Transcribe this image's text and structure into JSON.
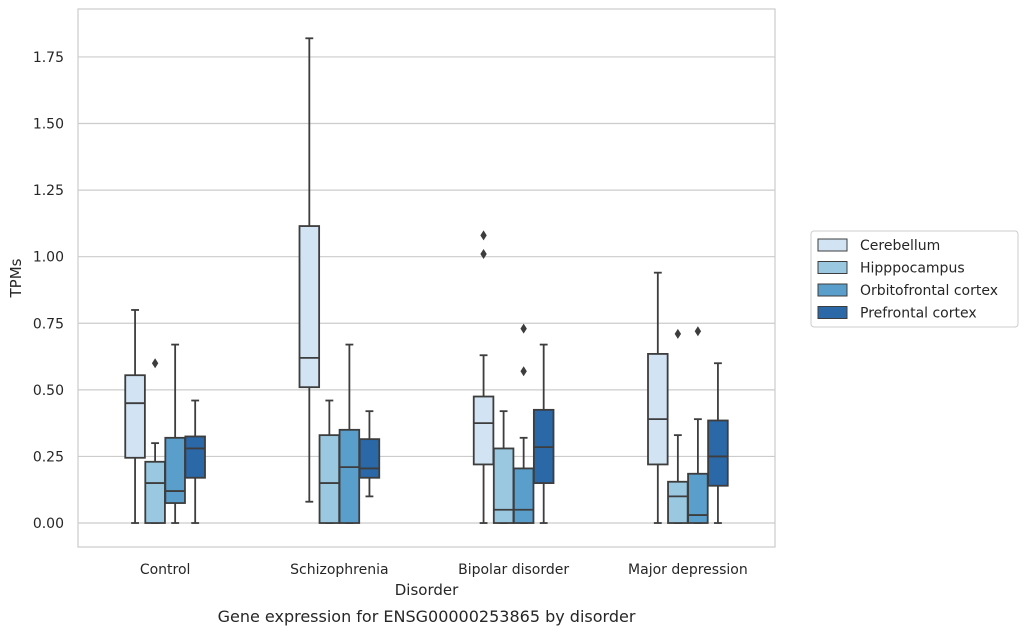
{
  "chart_data": {
    "type": "box",
    "caption": "Gene expression for ENSG00000253865 by disorder",
    "xlabel": "Disorder",
    "ylabel": "TPMs",
    "ylim": [
      -0.09,
      1.93
    ],
    "yticks": [
      "0.00",
      "0.25",
      "0.50",
      "0.75",
      "1.00",
      "1.25",
      "1.50",
      "1.75"
    ],
    "ytick_values": [
      0,
      0.25,
      0.5,
      0.75,
      1.0,
      1.25,
      1.5,
      1.75
    ],
    "categories": [
      "Control",
      "Schizophrenia",
      "Bipolar disorder",
      "Major depression"
    ],
    "grid": "horizontal",
    "legend_position": "right",
    "series": [
      {
        "name": "Cerebellum",
        "color": "#d2e3f3",
        "boxes": [
          {
            "whislo": 0.0,
            "q1": 0.245,
            "med": 0.45,
            "q3": 0.555,
            "whishi": 0.8,
            "fliers": []
          },
          {
            "whislo": 0.08,
            "q1": 0.51,
            "med": 0.62,
            "q3": 1.115,
            "whishi": 1.82,
            "fliers": []
          },
          {
            "whislo": 0.0,
            "q1": 0.22,
            "med": 0.375,
            "q3": 0.475,
            "whishi": 0.63,
            "fliers": [
              1.01,
              1.08
            ]
          },
          {
            "whislo": 0.0,
            "q1": 0.22,
            "med": 0.39,
            "q3": 0.635,
            "whishi": 0.94,
            "fliers": []
          }
        ]
      },
      {
        "name": "Hipppocampus",
        "color": "#9ac8e0",
        "boxes": [
          {
            "whislo": 0.0,
            "q1": 0.0,
            "med": 0.15,
            "q3": 0.23,
            "whishi": 0.3,
            "fliers": [
              0.6
            ]
          },
          {
            "whislo": 0.0,
            "q1": 0.0,
            "med": 0.15,
            "q3": 0.33,
            "whishi": 0.46,
            "fliers": []
          },
          {
            "whislo": 0.0,
            "q1": 0.0,
            "med": 0.05,
            "q3": 0.28,
            "whishi": 0.42,
            "fliers": []
          },
          {
            "whislo": 0.0,
            "q1": 0.0,
            "med": 0.1,
            "q3": 0.155,
            "whishi": 0.33,
            "fliers": [
              0.71
            ]
          }
        ]
      },
      {
        "name": "Orbitofrontal cortex",
        "color": "#5a9fcc",
        "boxes": [
          {
            "whislo": 0.0,
            "q1": 0.075,
            "med": 0.12,
            "q3": 0.32,
            "whishi": 0.67,
            "fliers": []
          },
          {
            "whislo": 0.0,
            "q1": 0.0,
            "med": 0.21,
            "q3": 0.35,
            "whishi": 0.67,
            "fliers": []
          },
          {
            "whislo": 0.0,
            "q1": 0.0,
            "med": 0.05,
            "q3": 0.205,
            "whishi": 0.32,
            "fliers": [
              0.57,
              0.73
            ]
          },
          {
            "whislo": 0.0,
            "q1": 0.0,
            "med": 0.03,
            "q3": 0.185,
            "whishi": 0.39,
            "fliers": [
              0.72
            ]
          }
        ]
      },
      {
        "name": "Prefrontal cortex",
        "color": "#2a68a8",
        "boxes": [
          {
            "whislo": 0.0,
            "q1": 0.17,
            "med": 0.28,
            "q3": 0.325,
            "whishi": 0.46,
            "fliers": []
          },
          {
            "whislo": 0.1,
            "q1": 0.17,
            "med": 0.205,
            "q3": 0.315,
            "whishi": 0.42,
            "fliers": []
          },
          {
            "whislo": 0.0,
            "q1": 0.15,
            "med": 0.285,
            "q3": 0.425,
            "whishi": 0.67,
            "fliers": []
          },
          {
            "whislo": 0.0,
            "q1": 0.14,
            "med": 0.25,
            "q3": 0.385,
            "whishi": 0.6,
            "fliers": []
          }
        ]
      }
    ]
  }
}
